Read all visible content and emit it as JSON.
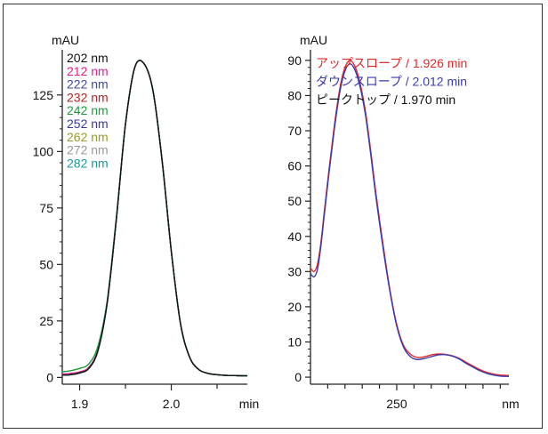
{
  "chart_data": [
    {
      "type": "line",
      "ylabel": "mAU",
      "xlabel": "min",
      "xlim": [
        1.881,
        2.083
      ],
      "ylim": [
        -3,
        145
      ],
      "xticks": [
        1.9,
        1.95,
        2.0,
        2.05
      ],
      "xticklabels": [
        "1.9",
        "",
        "2.0",
        ""
      ],
      "yticks": [
        0,
        25,
        50,
        75,
        100,
        125
      ],
      "yticklabels": [
        "0",
        "25",
        "50",
        "75",
        "100",
        "125"
      ],
      "legend": "top-left",
      "grid": false,
      "series": [
        {
          "name": "202 nm",
          "color": "#111111",
          "x": [
            1.881,
            1.89,
            1.9,
            1.91,
            1.92,
            1.93,
            1.94,
            1.95,
            1.96,
            1.97,
            1.98,
            1.99,
            2.0,
            2.01,
            2.02,
            2.03,
            2.04,
            2.05,
            2.06,
            2.07,
            2.083
          ],
          "y": [
            1,
            1.2,
            2,
            4,
            12,
            33,
            70,
            112,
            137,
            139,
            127,
            96,
            56,
            24,
            9,
            3.5,
            1.8,
            1.2,
            0.9,
            0.8,
            0.7
          ]
        },
        {
          "name": "212 nm",
          "color": "#e0208a",
          "x": [
            1.881,
            1.89,
            1.9,
            1.91,
            1.92,
            1.93,
            1.94,
            1.95,
            1.96,
            1.97,
            1.98,
            1.99,
            2.0,
            2.01,
            2.02,
            2.03,
            2.04,
            2.05,
            2.06,
            2.07,
            2.083
          ],
          "y": [
            1.5,
            1.8,
            2.5,
            4.5,
            12.5,
            33,
            70,
            112,
            137,
            139,
            127,
            96,
            56,
            24,
            9,
            3.5,
            1.8,
            1.2,
            0.9,
            0.8,
            0.7
          ]
        },
        {
          "name": "222 nm",
          "color": "#3c4a9a",
          "x": [
            1.881,
            1.89,
            1.9,
            1.91,
            1.92,
            1.93,
            1.94,
            1.95,
            1.96,
            1.97,
            1.98,
            1.99,
            2.0,
            2.01,
            2.02,
            2.03,
            2.04,
            2.05,
            2.06,
            2.07,
            2.083
          ],
          "y": [
            1,
            1.2,
            2,
            4,
            12,
            33,
            70,
            112,
            137,
            139,
            127,
            96,
            56,
            24,
            9,
            3.5,
            1.8,
            1.2,
            0.9,
            0.8,
            0.7
          ]
        },
        {
          "name": "232 nm",
          "color": "#b22222",
          "x": [
            1.881,
            1.89,
            1.9,
            1.91,
            1.92,
            1.93,
            1.94,
            1.95,
            1.96,
            1.97,
            1.98,
            1.99,
            2.0,
            2.01,
            2.02,
            2.03,
            2.04,
            2.05,
            2.06,
            2.07,
            2.083
          ],
          "y": [
            1,
            1.2,
            2,
            4,
            12,
            33,
            70,
            112,
            137,
            139,
            127,
            96,
            56,
            24,
            9,
            3.5,
            1.8,
            1.2,
            0.9,
            0.8,
            0.7
          ]
        },
        {
          "name": "242 nm",
          "color": "#1e9a3c",
          "x": [
            1.881,
            1.89,
            1.9,
            1.91,
            1.92,
            1.93,
            1.94,
            1.95,
            1.96,
            1.97,
            1.98,
            1.99,
            2.0,
            2.01,
            2.02,
            2.03,
            2.04,
            2.05,
            2.06,
            2.07,
            2.083
          ],
          "y": [
            2.5,
            3,
            4,
            6,
            14,
            34,
            71,
            112,
            137,
            139,
            127,
            96,
            56,
            24,
            9,
            3.5,
            1.8,
            1.2,
            0.9,
            0.8,
            0.7
          ]
        },
        {
          "name": "252 nm",
          "color": "#3a3a9c",
          "x": [
            1.881,
            1.89,
            1.9,
            1.91,
            1.92,
            1.93,
            1.94,
            1.95,
            1.96,
            1.97,
            1.98,
            1.99,
            2.0,
            2.01,
            2.02,
            2.03,
            2.04,
            2.05,
            2.06,
            2.07,
            2.083
          ],
          "y": [
            1,
            1.2,
            2,
            4,
            12,
            33,
            70,
            112,
            137,
            139,
            127,
            96,
            56,
            24,
            9,
            3.5,
            1.8,
            1.2,
            0.9,
            0.8,
            0.7
          ]
        },
        {
          "name": "262 nm",
          "color": "#9a9a2a",
          "x": [
            1.881,
            1.89,
            1.9,
            1.91,
            1.92,
            1.93,
            1.94,
            1.95,
            1.96,
            1.97,
            1.98,
            1.99,
            2.0,
            2.01,
            2.02,
            2.03,
            2.04,
            2.05,
            2.06,
            2.07,
            2.083
          ],
          "y": [
            1,
            1.2,
            2,
            4,
            12,
            33,
            70,
            112,
            137,
            139,
            127,
            96,
            56,
            24,
            9,
            3.5,
            1.8,
            1.2,
            0.9,
            0.8,
            0.7
          ]
        },
        {
          "name": "272 nm",
          "color": "#999999",
          "x": [
            1.881,
            1.89,
            1.9,
            1.91,
            1.92,
            1.93,
            1.94,
            1.95,
            1.96,
            1.97,
            1.98,
            1.99,
            2.0,
            2.01,
            2.02,
            2.03,
            2.04,
            2.05,
            2.06,
            2.07,
            2.083
          ],
          "y": [
            1,
            1.2,
            2,
            4,
            12,
            33,
            70,
            112,
            137,
            139,
            127,
            96,
            56,
            24,
            9,
            3.5,
            1.8,
            1.2,
            0.9,
            0.8,
            0.7
          ]
        },
        {
          "name": "282 nm",
          "color": "#1a9a9a",
          "x": [
            1.881,
            1.89,
            1.9,
            1.91,
            1.92,
            1.93,
            1.94,
            1.95,
            1.96,
            1.97,
            1.98,
            1.99,
            2.0,
            2.01,
            2.02,
            2.03,
            2.04,
            2.05,
            2.06,
            2.07,
            2.083
          ],
          "y": [
            1,
            1.2,
            2,
            4,
            12,
            33,
            70,
            112,
            137,
            139,
            127,
            96,
            56,
            24,
            9,
            3.5,
            1.8,
            1.2,
            0.9,
            0.8,
            0.7
          ]
        }
      ]
    },
    {
      "type": "line",
      "ylabel": "mAU",
      "xlabel": "nm",
      "xlim": [
        200,
        315
      ],
      "ylim": [
        -2,
        93
      ],
      "xticks": [
        210,
        220,
        230,
        240,
        250,
        260,
        270,
        280,
        290,
        300,
        310
      ],
      "xticklabels": [
        "",
        "",
        "",
        "",
        "250",
        "",
        "",
        "",
        "",
        "",
        ""
      ],
      "yticks": [
        0,
        10,
        20,
        30,
        40,
        50,
        60,
        70,
        80,
        90
      ],
      "yticklabels": [
        "0",
        "10",
        "20",
        "30",
        "40",
        "50",
        "60",
        "70",
        "80",
        "90"
      ],
      "legend": "top-left",
      "grid": false,
      "series": [
        {
          "name": "アップスロープ / 1.926 min",
          "color": "#e02828",
          "x": [
            200,
            202,
            204,
            206,
            208,
            211,
            214,
            217,
            220,
            223,
            226,
            229,
            232,
            235,
            238,
            242,
            246,
            250,
            254,
            258,
            262,
            266,
            270,
            274,
            278,
            282,
            286,
            290,
            294,
            298,
            302,
            306,
            310,
            315
          ],
          "y": [
            31,
            30,
            32,
            38,
            47,
            60,
            72,
            82,
            88,
            90,
            88,
            83,
            75,
            64,
            52,
            38,
            25,
            15,
            9,
            6.5,
            5.6,
            5.8,
            6.3,
            6.6,
            6.5,
            6.1,
            5.4,
            4.3,
            3.2,
            2.2,
            1.4,
            0.9,
            0.6,
            0.5
          ]
        },
        {
          "name": "ダウンスロープ / 2.012 min",
          "color": "#3a3ab0",
          "x": [
            200,
            202,
            204,
            206,
            208,
            211,
            214,
            217,
            220,
            223,
            226,
            229,
            232,
            235,
            238,
            242,
            246,
            250,
            254,
            258,
            262,
            266,
            270,
            274,
            278,
            282,
            286,
            290,
            294,
            298,
            302,
            306,
            310,
            315
          ],
          "y": [
            29.5,
            28.5,
            30.5,
            37,
            46,
            59,
            71,
            81,
            87,
            89,
            87,
            82,
            74,
            63,
            51,
            37,
            24.5,
            14.5,
            8.5,
            5.8,
            5.0,
            5.3,
            5.8,
            6.3,
            6.4,
            6.0,
            5.2,
            4.0,
            2.9,
            1.9,
            1.1,
            0.6,
            0.3,
            0.2
          ]
        },
        {
          "name": "ピークトップ / 1.970 min",
          "color": "#111111",
          "x": [],
          "y": []
        }
      ]
    }
  ]
}
